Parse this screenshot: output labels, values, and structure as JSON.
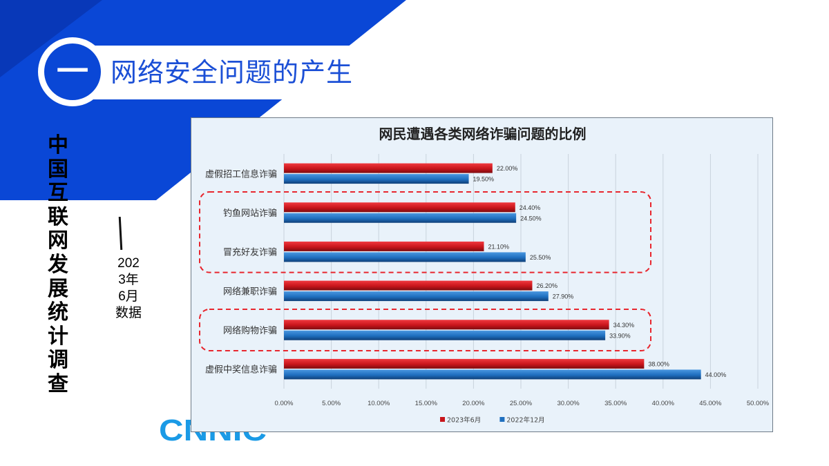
{
  "slide": {
    "section_number": "一",
    "section_title": "网络安全问题的产生",
    "vertical_title": "中国互联网发展统计调查",
    "date_label_lines": [
      "202",
      "3年",
      "6月",
      "数据"
    ],
    "logo_text": "CNNIC",
    "colors": {
      "banner_blue": "#0a47d6",
      "title_blue": "#1b4fd6",
      "logo_blue": "#1a9ae6",
      "highlight_red": "#e8262e"
    }
  },
  "chart_data": {
    "type": "bar",
    "orientation": "horizontal",
    "title": "网民遭遇各类网络诈骗问题的比例",
    "categories": [
      "虚假招工信息诈骗",
      "钓鱼网站诈骗",
      "冒充好友诈骗",
      "网络兼职诈骗",
      "网络购物诈骗",
      "虚假中奖信息诈骗"
    ],
    "series": [
      {
        "name": "2023年6月",
        "color": "#c8151b",
        "values": [
          22.0,
          24.4,
          21.1,
          26.2,
          34.3,
          38.0
        ],
        "labels": [
          "22.00%",
          "24.40%",
          "21.10%",
          "26.20%",
          "34.30%",
          "38.00%"
        ]
      },
      {
        "name": "2022年12月",
        "color": "#1f6fbf",
        "values": [
          19.5,
          24.5,
          25.5,
          27.9,
          33.9,
          44.0
        ],
        "labels": [
          "19.50%",
          "24.50%",
          "25.50%",
          "27.90%",
          "33.90%",
          "44.00%"
        ]
      }
    ],
    "xlim": [
      0,
      50
    ],
    "x_ticks": [
      0,
      5,
      10,
      15,
      20,
      25,
      30,
      35,
      40,
      45,
      50
    ],
    "x_tick_labels": [
      "0.00%",
      "5.00%",
      "10.00%",
      "15.00%",
      "20.00%",
      "25.00%",
      "30.00%",
      "35.00%",
      "40.00%",
      "45.00%",
      "50.00%"
    ],
    "grid": true,
    "legend_position": "bottom",
    "highlight_groups": [
      {
        "categories": [
          "钓鱼网站诈骗",
          "冒充好友诈骗"
        ]
      },
      {
        "categories": [
          "网络购物诈骗"
        ]
      }
    ]
  }
}
